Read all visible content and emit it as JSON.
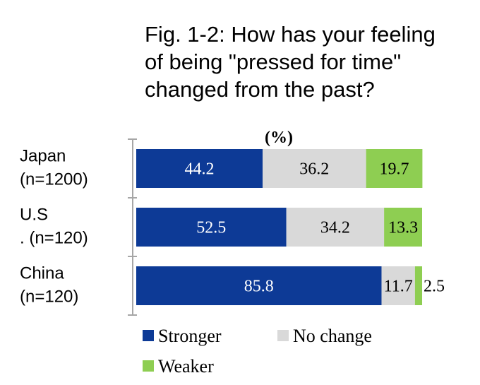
{
  "title_lines": [
    "Fig. 1-2: How has your feeling",
    "of being \"pressed for time\"",
    "changed from the past?"
  ],
  "unit": "(%)",
  "colors": {
    "stronger": "#0d3a96",
    "no_change": "#d9d9d9",
    "weaker": "#8ece52",
    "axis": "#a6a6a6"
  },
  "chart_data": {
    "type": "bar",
    "orientation": "horizontal",
    "stacked": true,
    "categories": [
      [
        "Japan",
        "(n=1200)"
      ],
      [
        "U.S",
        ". (n=120)"
      ],
      [
        "China",
        "(n=120)"
      ]
    ],
    "series": [
      {
        "name": "Stronger",
        "values": [
          44.2,
          52.5,
          85.8
        ]
      },
      {
        "name": "No change",
        "values": [
          36.2,
          34.2,
          11.7
        ]
      },
      {
        "name": "Weaker",
        "values": [
          19.7,
          13.3,
          2.5
        ]
      }
    ],
    "xlim": [
      0,
      100
    ],
    "legend_position": "bottom"
  }
}
